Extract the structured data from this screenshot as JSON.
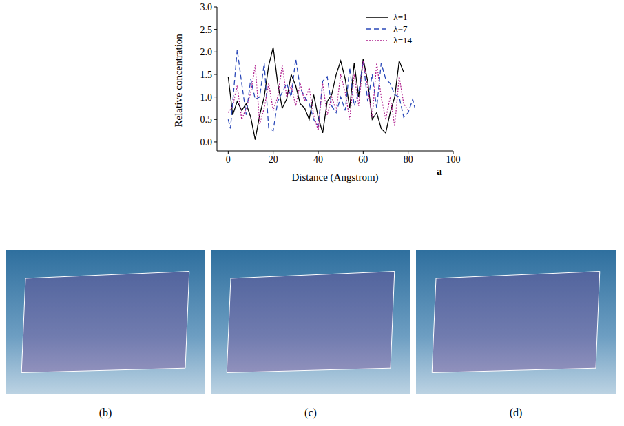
{
  "chart_data": {
    "type": "line",
    "xlabel": "Distance (Angstrom)",
    "ylabel": "Relative concentration",
    "annotation": "a",
    "xlim": [
      -5,
      100
    ],
    "xticks": [
      0,
      20,
      40,
      60,
      80,
      100
    ],
    "ylim": [
      -0.2,
      3.0
    ],
    "yticks": [
      {
        "value": 0,
        "label": "0.0"
      },
      {
        "value": 0.5,
        "label": "0.5"
      },
      {
        "value": 1,
        "label": "1.0"
      },
      {
        "value": 1.5,
        "label": "1.5"
      },
      {
        "value": 2,
        "label": "2.0"
      },
      {
        "value": 2.5,
        "label": "2.5"
      },
      {
        "value": 3,
        "label": "3.0"
      }
    ],
    "legend": "top-right",
    "grid": false,
    "series": [
      {
        "name": "λ=1",
        "color": "#000000",
        "line_style": "solid",
        "x": [
          0,
          2,
          4,
          6,
          8,
          10,
          12,
          14,
          16,
          18,
          20,
          22,
          24,
          26,
          28,
          30,
          32,
          34,
          36,
          38,
          40,
          42,
          44,
          46,
          48,
          50,
          52,
          54,
          56,
          58,
          60,
          62,
          64,
          66,
          68,
          70,
          72,
          74,
          76,
          78
        ],
        "values": [
          1.45,
          0.6,
          0.9,
          0.7,
          0.85,
          0.55,
          0.05,
          0.6,
          1.0,
          1.7,
          2.1,
          1.3,
          0.75,
          0.95,
          1.5,
          1.25,
          0.85,
          0.75,
          0.5,
          1.05,
          0.55,
          0.2,
          0.9,
          1.05,
          1.5,
          1.8,
          1.4,
          0.75,
          1.75,
          1.0,
          1.85,
          1.35,
          0.5,
          0.65,
          0.3,
          0.2,
          0.65,
          1.0,
          1.8,
          1.55
        ]
      },
      {
        "name": "λ=7",
        "color": "#2a48b8",
        "line_style": "dashed",
        "x": [
          0,
          1,
          4,
          6,
          8,
          10,
          12,
          14,
          16,
          18,
          20,
          22,
          24,
          26,
          28,
          30,
          32,
          34,
          36,
          38,
          40,
          42,
          44,
          46,
          48,
          50,
          52,
          54,
          56,
          58,
          60,
          62,
          64,
          66,
          68,
          70,
          72,
          74,
          76,
          78,
          80,
          82,
          83
        ],
        "values": [
          0.5,
          0.3,
          2.05,
          1.3,
          0.6,
          1.4,
          0.95,
          1.0,
          1.75,
          0.3,
          0.25,
          0.9,
          1.1,
          1.3,
          1.0,
          1.85,
          1.2,
          1.0,
          0.85,
          0.5,
          0.35,
          1.35,
          1.45,
          0.8,
          0.65,
          1.0,
          0.7,
          1.65,
          0.8,
          1.1,
          1.8,
          0.9,
          1.5,
          0.75,
          1.75,
          1.4,
          1.3,
          1.05,
          1.0,
          0.55,
          0.65,
          0.95,
          0.75
        ]
      },
      {
        "name": "λ=14",
        "color": "#b0208f",
        "line_style": "dotted",
        "x": [
          0,
          2,
          4,
          6,
          8,
          10,
          12,
          14,
          16,
          18,
          20,
          22,
          24,
          26,
          28,
          30,
          32,
          34,
          36,
          38,
          40,
          42,
          44,
          46,
          48,
          50,
          52,
          54,
          56,
          58,
          60,
          62,
          64,
          66,
          68,
          70,
          72,
          74,
          76,
          78,
          80
        ],
        "values": [
          0.65,
          0.8,
          1.25,
          0.5,
          0.75,
          1.1,
          1.7,
          0.4,
          0.75,
          1.3,
          0.7,
          1.0,
          1.7,
          1.0,
          1.25,
          0.8,
          1.3,
          0.9,
          1.2,
          0.6,
          0.25,
          1.3,
          0.6,
          1.0,
          0.7,
          1.5,
          1.1,
          0.5,
          1.5,
          0.8,
          1.8,
          1.2,
          0.55,
          1.75,
          1.0,
          0.5,
          1.0,
          0.35,
          1.45,
          0.85,
          0.7
        ]
      }
    ]
  },
  "snapshots": [
    "(b)",
    "(c)",
    "(d)"
  ]
}
